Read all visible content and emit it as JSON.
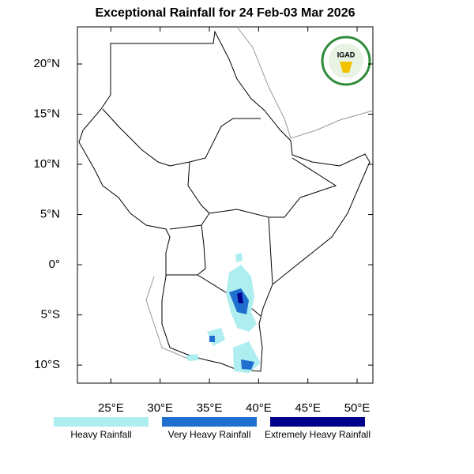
{
  "chart_data": {
    "type": "map",
    "title": "Exceptional Rainfall for 24 Feb-03 Mar 2026",
    "logo": "IGAD",
    "xlim": [
      21.6,
      51.6
    ],
    "ylim": [
      -11.8,
      23.7
    ],
    "xticks": [
      {
        "value": 25,
        "label": "25°E"
      },
      {
        "value": 30,
        "label": "30°E"
      },
      {
        "value": 35,
        "label": "35°E"
      },
      {
        "value": 40,
        "label": "40°E"
      },
      {
        "value": 45,
        "label": "45°E"
      },
      {
        "value": 50,
        "label": "50°E"
      }
    ],
    "yticks": [
      {
        "value": 20,
        "label": "20°N"
      },
      {
        "value": 15,
        "label": "15°N"
      },
      {
        "value": 10,
        "label": "10°N"
      },
      {
        "value": 5,
        "label": "5°N"
      },
      {
        "value": 0,
        "label": "0°"
      },
      {
        "value": -5,
        "label": "5°S"
      },
      {
        "value": -10,
        "label": "10°S"
      }
    ],
    "legend": [
      {
        "label": "Heavy Rainfall",
        "color": "#aeeef0"
      },
      {
        "label": "Very Heavy Rainfall",
        "color": "#1f6fd1"
      },
      {
        "label": "Extremely Heavy Rainfall",
        "color": "#00008b"
      }
    ]
  }
}
